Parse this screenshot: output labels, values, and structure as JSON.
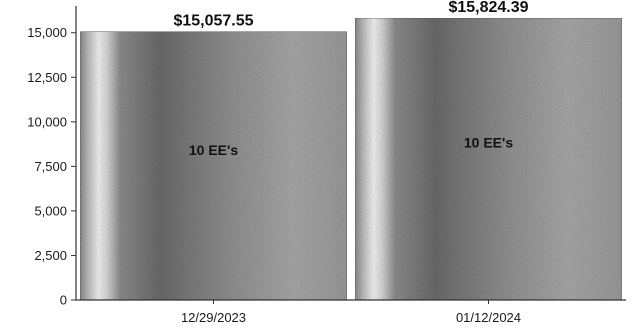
{
  "chart_data": {
    "type": "bar",
    "categories": [
      "12/29/2023",
      "01/12/2024"
    ],
    "values": [
      15057.55,
      15824.39
    ],
    "value_labels": [
      "$15,057.55",
      "$15,824.39"
    ],
    "inner_labels": [
      "10 EE's",
      "10 EE's"
    ],
    "ylim": [
      0,
      16500
    ],
    "yticks": [
      0,
      2500,
      5000,
      7500,
      10000,
      12500,
      15000
    ],
    "ytick_labels": [
      "0",
      "2,500",
      "5,000",
      "7,500",
      "10,000",
      "12,500",
      "15,000"
    ],
    "grid": false,
    "legend": "none",
    "colors": {
      "bar_dark": "#6e6e6e",
      "bar_mid": "#a8a8a8",
      "bar_light": "#f2f2f2",
      "axis": "#333333"
    }
  }
}
